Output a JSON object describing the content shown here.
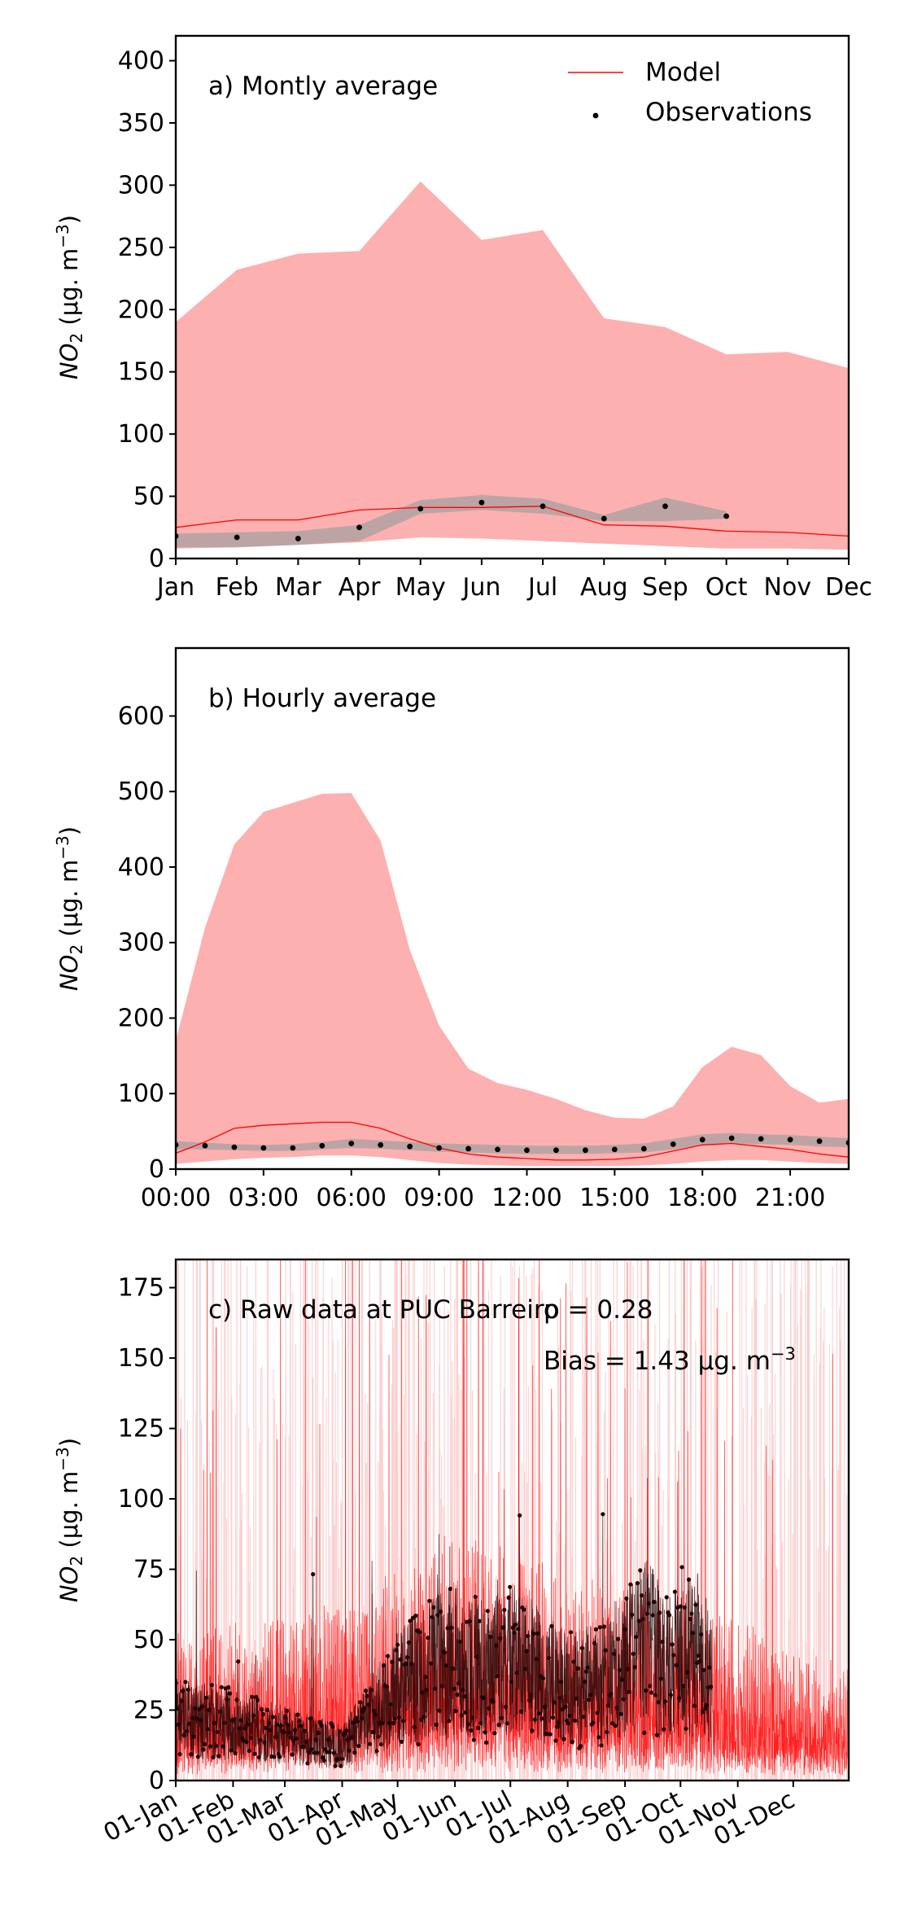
{
  "colors": {
    "model": "#ff0000",
    "model_range": "#fdb0b0",
    "obs": "#000000",
    "obs_range": "#a0a0a0"
  },
  "ylabel_text": "NO",
  "ylabel_sub": "2",
  "ylabel_units_open": " (μg. m",
  "ylabel_sup": "−3",
  "ylabel_units_close": ")",
  "chart_data": [
    {
      "type": "area",
      "label": "a) Montly average",
      "categories": [
        "Jan",
        "Feb",
        "Mar",
        "Apr",
        "May",
        "Jun",
        "Jul",
        "Aug",
        "Sep",
        "Oct",
        "Nov",
        "Dec"
      ],
      "ylim": [
        0,
        420
      ],
      "yticks": [
        "0",
        "50",
        "100",
        "150",
        "200",
        "250",
        "300",
        "350",
        "400"
      ],
      "legend": {
        "placement": "top-right",
        "model": "Model",
        "observations": "Observations"
      },
      "model_mean": [
        25,
        31,
        31,
        39,
        41,
        41,
        42,
        27,
        26,
        22,
        21,
        18
      ],
      "model_upper": [
        190,
        232,
        245,
        247,
        303,
        256,
        264,
        193,
        186,
        164,
        166,
        153
      ],
      "model_lower": [
        8,
        9,
        11,
        13,
        17,
        16,
        14,
        12,
        10,
        8,
        8,
        7
      ],
      "obs_mean": [
        18,
        17,
        16,
        25,
        40,
        45,
        42,
        32,
        42,
        34,
        null,
        null
      ],
      "obs_upper": [
        20,
        21,
        22,
        27,
        47,
        51,
        48,
        35,
        49,
        38,
        null,
        null
      ],
      "obs_lower": [
        9,
        9,
        11,
        14,
        36,
        39,
        36,
        30,
        30,
        32,
        null,
        null
      ]
    },
    {
      "type": "area",
      "label": "b) Hourly average",
      "categories": [
        "00:00",
        "03:00",
        "06:00",
        "09:00",
        "12:00",
        "15:00",
        "18:00",
        "21:00"
      ],
      "x_hours": [
        0,
        1,
        2,
        3,
        4,
        5,
        6,
        7,
        8,
        9,
        10,
        11,
        12,
        13,
        14,
        15,
        16,
        17,
        18,
        19,
        20,
        21,
        22,
        23
      ],
      "ylim": [
        0,
        690
      ],
      "yticks": [
        "0",
        "100",
        "200",
        "300",
        "400",
        "500",
        "600"
      ],
      "model_mean": [
        21,
        36,
        54,
        58,
        60,
        62,
        62,
        54,
        40,
        28,
        20,
        16,
        14,
        12,
        12,
        13,
        16,
        24,
        32,
        34,
        30,
        26,
        20,
        16
      ],
      "model_upper": [
        170,
        320,
        430,
        473,
        485,
        497,
        498,
        435,
        290,
        190,
        133,
        114,
        105,
        93,
        78,
        68,
        67,
        83,
        135,
        162,
        151,
        110,
        88,
        93
      ],
      "model_lower": [
        7,
        10,
        13,
        15,
        16,
        18,
        18,
        16,
        12,
        8,
        6,
        5,
        4,
        4,
        4,
        4,
        5,
        7,
        10,
        12,
        12,
        10,
        8,
        7
      ],
      "obs_mean": [
        32,
        31,
        29,
        28,
        28,
        31,
        34,
        32,
        30,
        28,
        27,
        26,
        25,
        25,
        25,
        26,
        27,
        33,
        39,
        41,
        40,
        39,
        37,
        35
      ],
      "obs_upper": [
        37,
        35,
        33,
        32,
        33,
        36,
        40,
        38,
        36,
        34,
        33,
        32,
        31,
        31,
        31,
        32,
        34,
        40,
        46,
        48,
        46,
        45,
        43,
        41
      ],
      "obs_lower": [
        26,
        26,
        25,
        24,
        24,
        26,
        28,
        27,
        25,
        23,
        22,
        21,
        20,
        20,
        20,
        21,
        22,
        26,
        32,
        34,
        33,
        32,
        30,
        29
      ]
    },
    {
      "type": "line",
      "label": "c) Raw data at PUC Barreiro",
      "annotations": [
        "p = 0.28",
        "Bias = 1.43 μg. m"
      ],
      "bias_sup": "−3",
      "categories": [
        "01-Jan",
        "01-Feb",
        "01-Mar",
        "01-Apr",
        "01-May",
        "01-Jun",
        "01-Jul",
        "01-Aug",
        "01-Sep",
        "01-Oct",
        "01-Nov",
        "01-Dec"
      ],
      "x_days": [
        0,
        31,
        59,
        90,
        120,
        151,
        181,
        212,
        243,
        273,
        304,
        334
      ],
      "ylim": [
        0,
        185
      ],
      "yticks": [
        "0",
        "25",
        "50",
        "75",
        "100",
        "125",
        "150",
        "175"
      ],
      "obs_daily_baseline": [
        [
          0,
          22
        ],
        [
          31,
          20
        ],
        [
          59,
          16
        ],
        [
          90,
          12
        ],
        [
          120,
          32
        ],
        [
          140,
          40
        ],
        [
          151,
          42
        ],
        [
          170,
          38
        ],
        [
          181,
          45
        ],
        [
          200,
          36
        ],
        [
          212,
          32
        ],
        [
          230,
          34
        ],
        [
          243,
          42
        ],
        [
          255,
          48
        ],
        [
          265,
          40
        ],
        [
          273,
          42
        ],
        [
          283,
          45
        ],
        [
          290,
          36
        ]
      ],
      "obs_end_day": 290,
      "model_baseline_daily": [
        [
          0,
          20
        ],
        [
          40,
          22
        ],
        [
          80,
          24
        ],
        [
          120,
          30
        ],
        [
          151,
          34
        ],
        [
          181,
          32
        ],
        [
          212,
          28
        ],
        [
          243,
          28
        ],
        [
          273,
          26
        ],
        [
          304,
          22
        ],
        [
          334,
          18
        ],
        [
          364,
          16
        ]
      ]
    }
  ]
}
